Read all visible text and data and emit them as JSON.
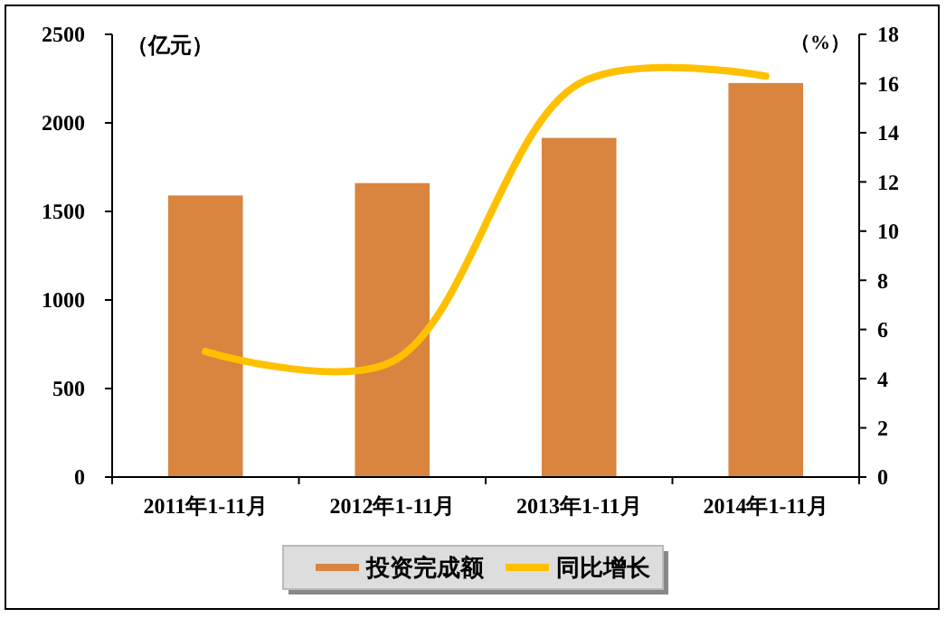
{
  "chart_data": {
    "type": "bar",
    "ylabel": "（亿元）",
    "y2label": "（%）",
    "categories": [
      "2011年1-11月",
      "2012年1-11月",
      "2013年1-11月",
      "2014年1-11月"
    ],
    "series": [
      {
        "name": "投资完成额",
        "color": "#d9843f",
        "values": [
          1590,
          1660,
          1915,
          2225
        ]
      },
      {
        "name": "同比增长",
        "type": "line",
        "axis": "y2",
        "color": "#ffc000",
        "values": [
          5.1,
          4.7,
          16.0,
          16.3
        ],
        "marker": "none"
      }
    ],
    "ylim": [
      0,
      2500
    ],
    "yticks": [
      0,
      500,
      1000,
      1500,
      2000,
      2500
    ],
    "y2lim": [
      0,
      18
    ],
    "y2ticks": [
      0,
      2,
      4,
      6,
      8,
      10,
      12,
      14,
      16,
      18
    ],
    "grid": false,
    "legend": "bottom"
  }
}
